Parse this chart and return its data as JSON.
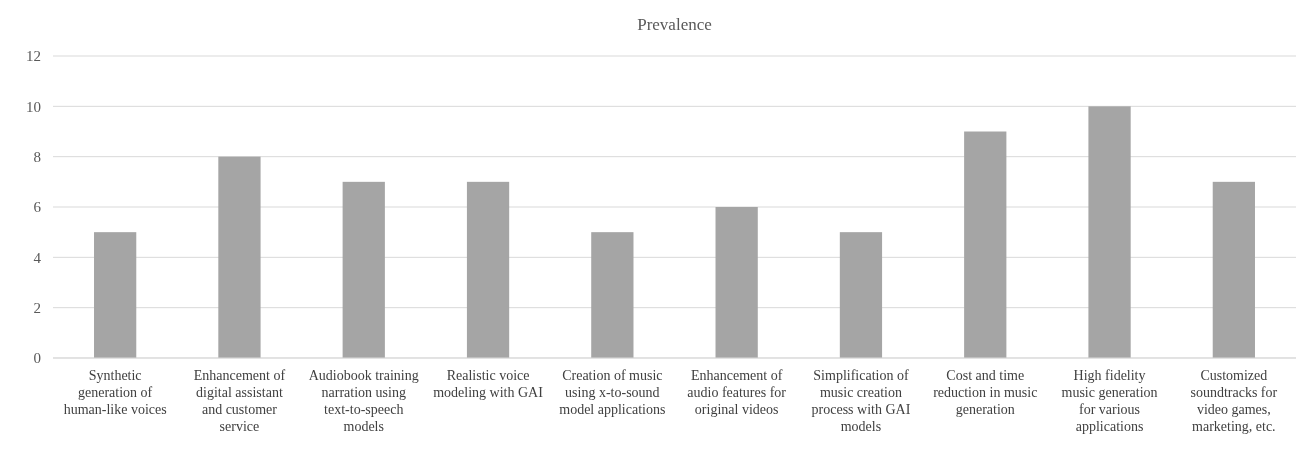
{
  "chart_data": {
    "type": "bar",
    "title": "Prevalence",
    "categories": [
      "Synthetic generation of human-like voices",
      "Enhancement of digital assistant and customer service",
      "Audiobook training narration using text-to-speech models",
      "Realistic voice modeling with GAI",
      "Creation of music using x-to-sound model applications",
      "Enhancement of audio features for original videos",
      "Simplification of music creation process with GAI models",
      "Cost and time reduction in music generation",
      "High fidelity music generation for various applications",
      "Customized soundtracks for video games, marketing, etc."
    ],
    "values": [
      5,
      8,
      7,
      7,
      5,
      6,
      5,
      9,
      10,
      7
    ],
    "color": "#a5a5a5",
    "ylim": [
      0,
      12
    ],
    "yticks": [
      0,
      2,
      4,
      6,
      8,
      10,
      12
    ],
    "grid": "y"
  }
}
